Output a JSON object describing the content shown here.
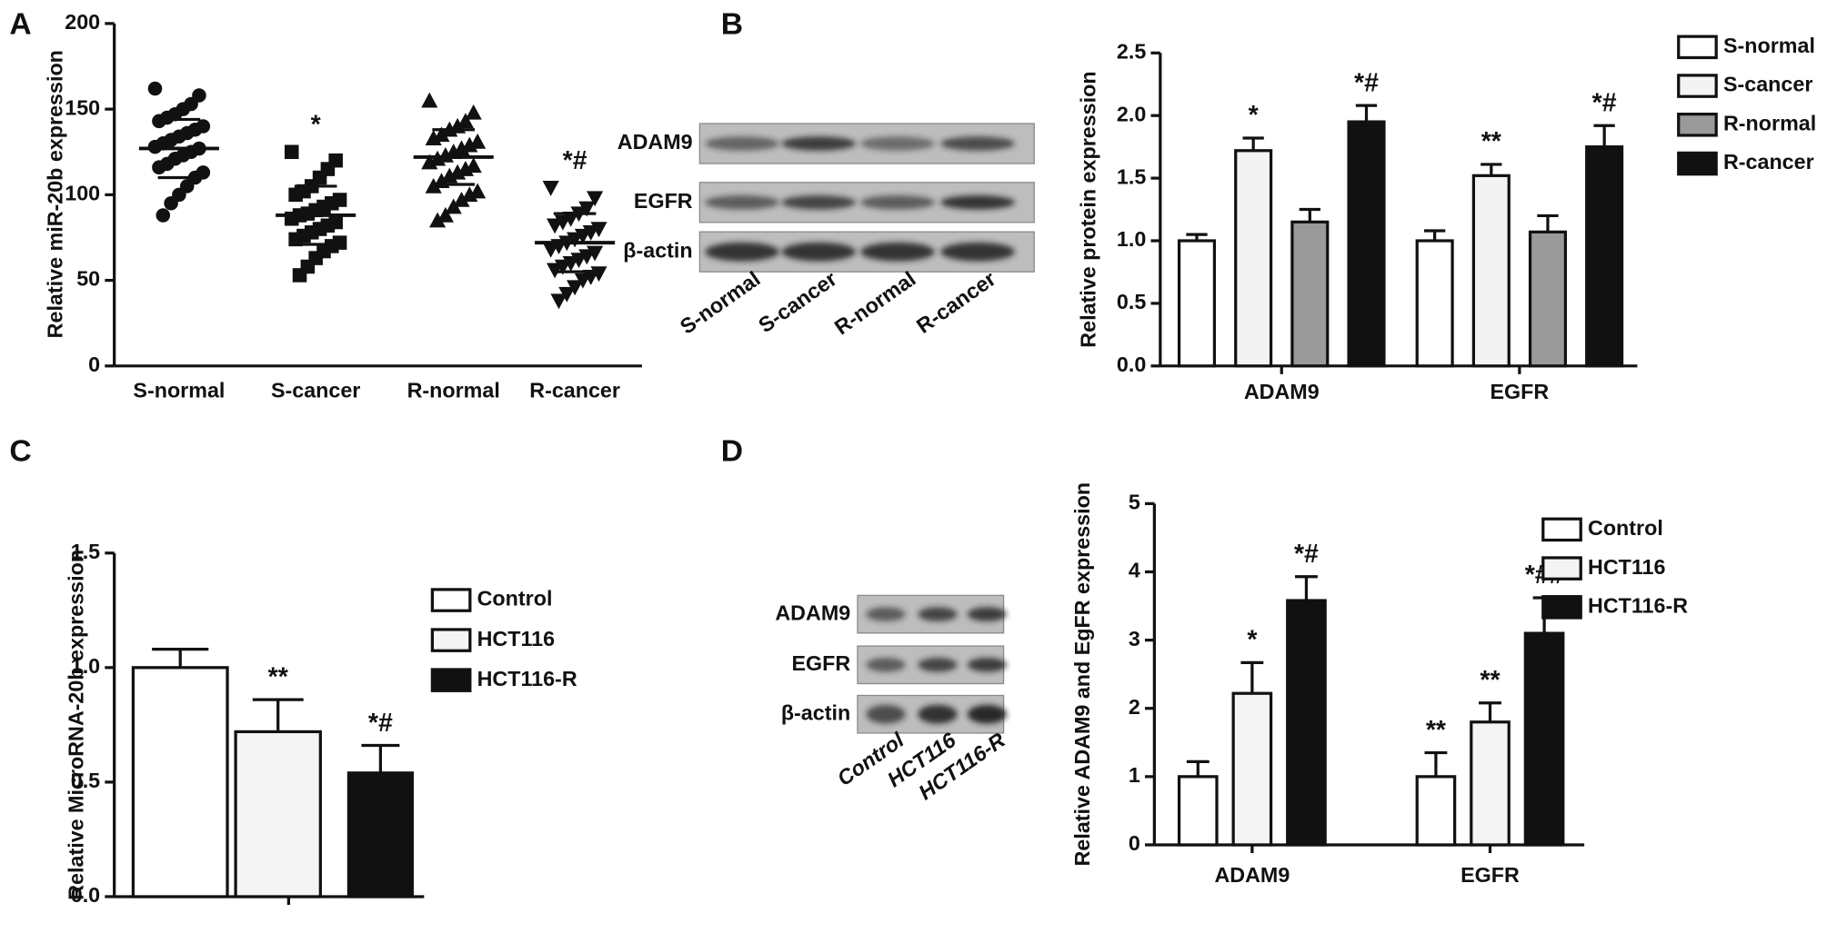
{
  "panels": {
    "a": "A",
    "b": "B",
    "c": "C",
    "d": "D"
  },
  "blots": [
    {
      "rows": [
        "ADAM9",
        "EGFR",
        "β-actin"
      ],
      "lanes": [
        "S-normal",
        "S-cancer",
        "R-normal",
        "R-cancer"
      ]
    },
    {
      "rows": [
        "ADAM9",
        "EGFR",
        "β-actin"
      ],
      "lanes": [
        "Control",
        "HCT116",
        "HCT116-R"
      ]
    }
  ],
  "chart_data": [
    {
      "type": "scatter",
      "y_label": "Relative miR-20b expression",
      "categories": [
        "S-normal",
        "S-cancer",
        "R-normal",
        "R-cancer"
      ],
      "groups": [
        {
          "marker": "circle",
          "mean": 127,
          "sd": 17,
          "significance": null,
          "values": [
            162,
            158,
            153,
            150,
            147,
            145,
            143,
            140,
            138,
            136,
            134,
            132,
            130,
            128,
            127,
            125,
            123,
            121,
            118,
            116,
            113,
            110,
            105,
            100,
            95,
            88
          ]
        },
        {
          "marker": "square",
          "mean": 88,
          "sd": 17,
          "significance": "*",
          "values": [
            125,
            120,
            115,
            110,
            105,
            102,
            100,
            97,
            95,
            93,
            91,
            89,
            88,
            86,
            84,
            82,
            80,
            78,
            76,
            74,
            72,
            70,
            67,
            63,
            58,
            53
          ]
        },
        {
          "marker": "triangle-up",
          "mean": 122,
          "sd": 16,
          "significance": null,
          "values": [
            155,
            148,
            143,
            140,
            138,
            135,
            133,
            131,
            129,
            127,
            125,
            123,
            121,
            119,
            117,
            115,
            113,
            111,
            108,
            105,
            102,
            100,
            97,
            93,
            88,
            85
          ]
        },
        {
          "marker": "triangle-down",
          "mean": 72,
          "sd": 17,
          "significance": "*#",
          "values": [
            104,
            98,
            92,
            89,
            86,
            84,
            82,
            80,
            78,
            76,
            74,
            72,
            70,
            68,
            66,
            64,
            62,
            60,
            58,
            56,
            54,
            52,
            50,
            46,
            42,
            38
          ]
        }
      ],
      "ylim": [
        0,
        200
      ],
      "yticks": [
        0,
        50,
        100,
        150,
        200
      ],
      "color": "#111111"
    },
    {
      "type": "bar",
      "y_label": "Relative protein expression",
      "categories": [
        "ADAM9",
        "EGFR"
      ],
      "series": [
        {
          "name": "S-normal",
          "color": "#ffffff",
          "values": [
            1.0,
            1.0
          ],
          "errors": [
            0.05,
            0.08
          ],
          "significance": [
            null,
            null
          ]
        },
        {
          "name": "S-cancer",
          "color": "#f3f3f3",
          "values": [
            1.72,
            1.52
          ],
          "errors": [
            0.1,
            0.09
          ],
          "significance": [
            "*",
            "**"
          ]
        },
        {
          "name": "R-normal",
          "color": "#9a9a9a",
          "values": [
            1.15,
            1.07
          ],
          "errors": [
            0.1,
            0.13
          ],
          "significance": [
            null,
            null
          ]
        },
        {
          "name": "R-cancer",
          "color": "#111111",
          "values": [
            1.95,
            1.75
          ],
          "errors": [
            0.13,
            0.17
          ],
          "significance": [
            "*#",
            "*#"
          ]
        }
      ],
      "ylim": [
        0,
        2.5
      ],
      "yticks": [
        {
          "value": 0,
          "label": "0.0"
        },
        0.5,
        {
          "value": 1,
          "label": "1.0"
        },
        1.5,
        {
          "value": 2,
          "label": "2.0"
        },
        2.5
      ],
      "legend": "upper right"
    },
    {
      "type": "bar",
      "y_label": "Relative MicroRNA-20b expression",
      "categories": [
        null
      ],
      "series": [
        {
          "name": "Control",
          "color": "#ffffff",
          "values": [
            1.0
          ],
          "errors": [
            0.08
          ],
          "significance": [
            null
          ]
        },
        {
          "name": "HCT116",
          "color": "#f4f4f4",
          "values": [
            0.72
          ],
          "errors": [
            0.14
          ],
          "significance": [
            "**"
          ]
        },
        {
          "name": "HCT116-R",
          "color": "#111111",
          "values": [
            0.54
          ],
          "errors": [
            0.12
          ],
          "significance": [
            "*#"
          ]
        }
      ],
      "ylim": [
        0,
        1.5
      ],
      "yticks": [
        {
          "value": 0,
          "label": "0.0"
        },
        0.5,
        {
          "value": 1,
          "label": "1.0"
        },
        1.5
      ],
      "legend": "center right"
    },
    {
      "type": "bar",
      "y_label": "Relative ADAM9 and EgFR expression",
      "categories": [
        "ADAM9",
        "EGFR"
      ],
      "series": [
        {
          "name": "Control",
          "color": "#ffffff",
          "values": [
            1.0,
            1.0
          ],
          "errors": [
            0.22,
            0.35
          ],
          "significance": [
            null,
            "**"
          ]
        },
        {
          "name": "HCT116",
          "color": "#f4f4f4",
          "values": [
            2.22,
            1.8
          ],
          "errors": [
            0.45,
            0.28
          ],
          "significance": [
            "*",
            "**"
          ]
        },
        {
          "name": "HCT116-R",
          "color": "#111111",
          "values": [
            3.58,
            3.1
          ],
          "errors": [
            0.35,
            0.52
          ],
          "significance": [
            "*#",
            "*##"
          ]
        }
      ],
      "ylim": [
        0,
        5
      ],
      "yticks": [
        0,
        1,
        2,
        3,
        4,
        5
      ],
      "legend": "upper right"
    }
  ]
}
